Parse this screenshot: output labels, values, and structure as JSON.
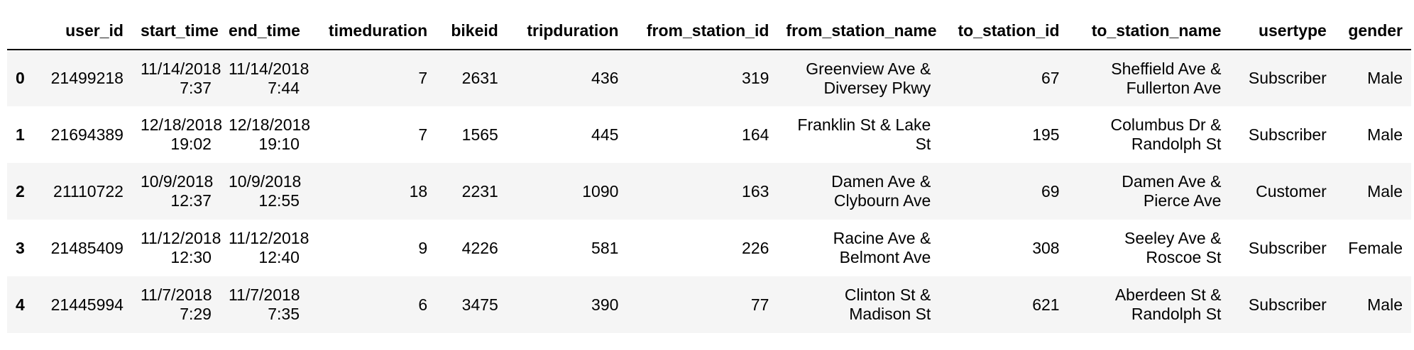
{
  "table": {
    "index_header": "",
    "columns": [
      "user_id",
      "start_time",
      "end_time",
      "timeduration",
      "bikeid",
      "tripduration",
      "from_station_id",
      "from_station_name",
      "to_station_id",
      "to_station_name",
      "usertype",
      "gender"
    ],
    "rows": [
      {
        "index": "0",
        "cells": [
          [
            "21499218"
          ],
          [
            "11/14/2018",
            "7:37"
          ],
          [
            "11/14/2018",
            "7:44"
          ],
          [
            "7"
          ],
          [
            "2631"
          ],
          [
            "436"
          ],
          [
            "319"
          ],
          [
            "Greenview Ave &",
            "Diversey Pkwy"
          ],
          [
            "67"
          ],
          [
            "Sheffield Ave &",
            "Fullerton Ave"
          ],
          [
            "Subscriber"
          ],
          [
            "Male"
          ]
        ]
      },
      {
        "index": "1",
        "cells": [
          [
            "21694389"
          ],
          [
            "12/18/2018",
            "19:02"
          ],
          [
            "12/18/2018",
            "19:10"
          ],
          [
            "7"
          ],
          [
            "1565"
          ],
          [
            "445"
          ],
          [
            "164"
          ],
          [
            "Franklin St & Lake",
            "St"
          ],
          [
            "195"
          ],
          [
            "Columbus Dr &",
            "Randolph St"
          ],
          [
            "Subscriber"
          ],
          [
            "Male"
          ]
        ]
      },
      {
        "index": "2",
        "cells": [
          [
            "21110722"
          ],
          [
            "10/9/2018",
            "12:37"
          ],
          [
            "10/9/2018",
            "12:55"
          ],
          [
            "18"
          ],
          [
            "2231"
          ],
          [
            "1090"
          ],
          [
            "163"
          ],
          [
            "Damen Ave &",
            "Clybourn Ave"
          ],
          [
            "69"
          ],
          [
            "Damen Ave &",
            "Pierce Ave"
          ],
          [
            "Customer"
          ],
          [
            "Male"
          ]
        ]
      },
      {
        "index": "3",
        "cells": [
          [
            "21485409"
          ],
          [
            "11/12/2018",
            "12:30"
          ],
          [
            "11/12/2018",
            "12:40"
          ],
          [
            "9"
          ],
          [
            "4226"
          ],
          [
            "581"
          ],
          [
            "226"
          ],
          [
            "Racine Ave &",
            "Belmont Ave"
          ],
          [
            "308"
          ],
          [
            "Seeley Ave &",
            "Roscoe St"
          ],
          [
            "Subscriber"
          ],
          [
            "Female"
          ]
        ]
      },
      {
        "index": "4",
        "cells": [
          [
            "21445994"
          ],
          [
            "11/7/2018",
            "7:29"
          ],
          [
            "11/7/2018",
            "7:35"
          ],
          [
            "6"
          ],
          [
            "3475"
          ],
          [
            "390"
          ],
          [
            "77"
          ],
          [
            "Clinton St &",
            "Madison St"
          ],
          [
            "621"
          ],
          [
            "Aberdeen St &",
            "Randolph St"
          ],
          [
            "Subscriber"
          ],
          [
            "Male"
          ]
        ]
      }
    ]
  }
}
